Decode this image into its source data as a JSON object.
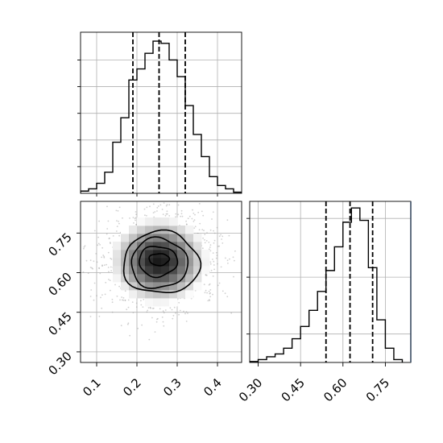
{
  "chart_data": {
    "type": "corner",
    "parameters": 2,
    "grid": true,
    "marginal_x": {
      "type": "histogram",
      "bin_edges": [
        0.06,
        0.08,
        0.1,
        0.12,
        0.14,
        0.16,
        0.18,
        0.2,
        0.22,
        0.24,
        0.26,
        0.28,
        0.3,
        0.32,
        0.34,
        0.36,
        0.38,
        0.4,
        0.42,
        0.44,
        0.46
      ],
      "counts": [
        2,
        4,
        9,
        19,
        46,
        68,
        102,
        112,
        126,
        137,
        135,
        120,
        105,
        79,
        53,
        33,
        15,
        7,
        4,
        1
      ],
      "ylim": [
        0,
        145
      ],
      "quantiles": [
        0.19,
        0.255,
        0.32
      ],
      "xlim": [
        0.06,
        0.46
      ]
    },
    "marginal_y": {
      "type": "histogram",
      "bin_edges": [
        0.27,
        0.3,
        0.33,
        0.36,
        0.39,
        0.42,
        0.45,
        0.48,
        0.51,
        0.54,
        0.57,
        0.6,
        0.63,
        0.66,
        0.69,
        0.72,
        0.75,
        0.78,
        0.81
      ],
      "counts": [
        1,
        3,
        6,
        9,
        15,
        25,
        38,
        55,
        75,
        97,
        122,
        148,
        163,
        150,
        100,
        45,
        15,
        3
      ],
      "ylim": [
        0,
        170
      ],
      "quantiles": [
        0.54,
        0.625,
        0.705
      ],
      "xlim": [
        0.27,
        0.84
      ],
      "ticks": [
        0.3,
        0.45,
        0.6,
        0.75
      ],
      "tick_labels": [
        "0.30",
        "0.45",
        "0.60",
        "0.75"
      ]
    },
    "joint": {
      "type": "2d-density",
      "xlim": [
        0.06,
        0.46
      ],
      "ylim": [
        0.26,
        0.87
      ],
      "x_ticks": [
        0.1,
        0.2,
        0.3,
        0.4
      ],
      "x_tick_labels": [
        "0.1",
        "0.2",
        "0.3",
        "0.4"
      ],
      "y_ticks": [
        0.3,
        0.45,
        0.6,
        0.75
      ],
      "y_tick_labels": [
        "0.30",
        "0.45",
        "0.60",
        "0.75"
      ],
      "center": [
        0.255,
        0.645
      ],
      "spread": [
        0.07,
        0.095
      ],
      "contour_levels": [
        {
          "rx": 0.05,
          "ry": 0.045,
          "dx": 0.0,
          "dy": 0.005
        },
        {
          "rx": 0.095,
          "ry": 0.115,
          "dx": -0.003,
          "dy": -0.002
        },
        {
          "rx": 0.14,
          "ry": 0.19,
          "dx": 0.0,
          "dy": -0.01
        },
        {
          "rx": 0.19,
          "ry": 0.235,
          "dx": 0.005,
          "dy": -0.008
        }
      ]
    }
  },
  "colors": {
    "line": "#000000",
    "grid": "#b0b0b0",
    "scatter": "#9a9a9a",
    "spine_accent": "#3b4c63"
  }
}
